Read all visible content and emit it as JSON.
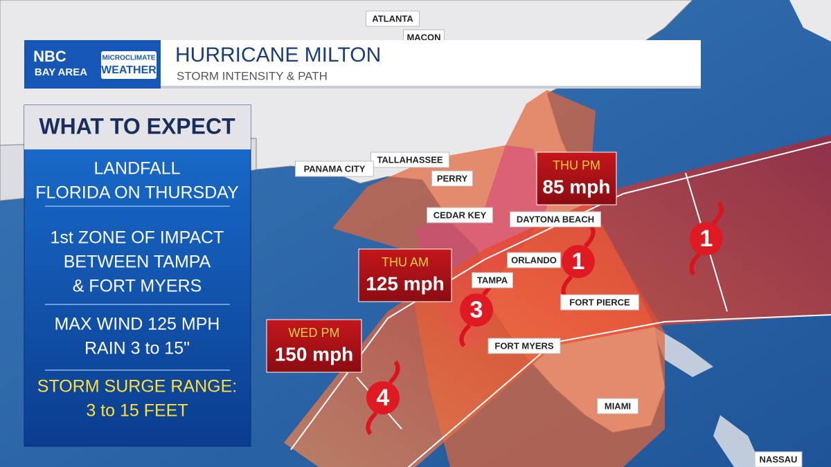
{
  "logo": {
    "network": "NBC",
    "region": "BAY AREA",
    "brand_line1": "MICROCLIMATE",
    "brand_line2": "WEATHER"
  },
  "header": {
    "title": "HURRICANE MILTON",
    "subtitle": "STORM INTENSITY & PATH"
  },
  "panel": {
    "heading": "WHAT TO EXPECT",
    "groups": [
      [
        "LANDFALL",
        "FLORIDA ON THURSDAY"
      ],
      [
        "1st ZONE OF IMPACT",
        "BETWEEN TAMPA",
        "& FORT MYERS"
      ],
      [
        "MAX WIND 125 MPH",
        "RAIN 3 to 15\""
      ],
      [
        "STORM SURGE RANGE:",
        "3 to 15 FEET"
      ]
    ]
  },
  "map": {
    "cities": [
      "ATLANTA",
      "MACON",
      "TALLAHASSEE",
      "PANAMA CITY",
      "PERRY",
      "CEDAR KEY",
      "DAYTONA BEACH",
      "ORLANDO",
      "TAMPA",
      "FORT PIERCE",
      "FORT MYERS",
      "MIAMI",
      "NASSAU"
    ],
    "forecast_points": [
      {
        "time": "THU PM",
        "wind": "85 mph"
      },
      {
        "time": "THU AM",
        "wind": "125 mph"
      },
      {
        "time": "WED PM",
        "wind": "150 mph"
      }
    ],
    "storm_categories": [
      4,
      3,
      1,
      1
    ]
  }
}
